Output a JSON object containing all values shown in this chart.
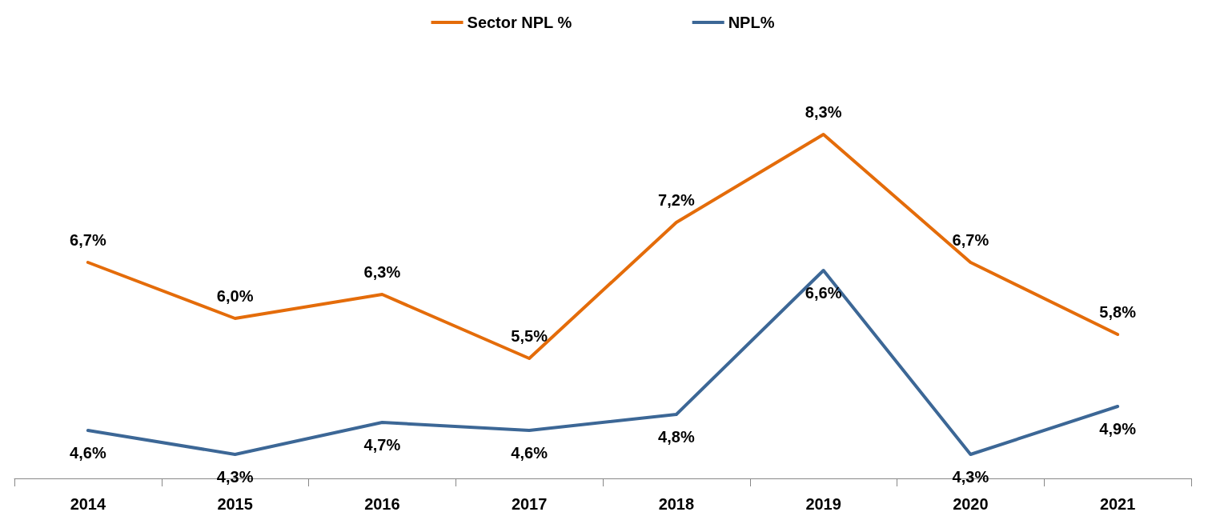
{
  "chart_data": {
    "type": "line",
    "categories": [
      "2014",
      "2015",
      "2016",
      "2017",
      "2018",
      "2019",
      "2020",
      "2021"
    ],
    "series": [
      {
        "name": "Sector NPL %",
        "color": "#e46c0a",
        "values": [
          6.7,
          6.0,
          6.3,
          5.5,
          7.2,
          8.3,
          6.7,
          5.8
        ],
        "value_labels": [
          "6,7%",
          "6,0%",
          "6,3%",
          "5,5%",
          "7,2%",
          "8,3%",
          "6,7%",
          "5,8%"
        ]
      },
      {
        "name": "NPL%",
        "color": "#3c6796",
        "values": [
          4.6,
          4.3,
          4.7,
          4.6,
          4.8,
          6.6,
          4.3,
          4.9
        ],
        "value_labels": [
          "4,6%",
          "4,3%",
          "4,7%",
          "4,6%",
          "4,8%",
          "6,6%",
          "4,3%",
          "4,9%"
        ]
      }
    ],
    "legend": "top",
    "grid": false,
    "marker": "none",
    "tick_labels": "x"
  }
}
